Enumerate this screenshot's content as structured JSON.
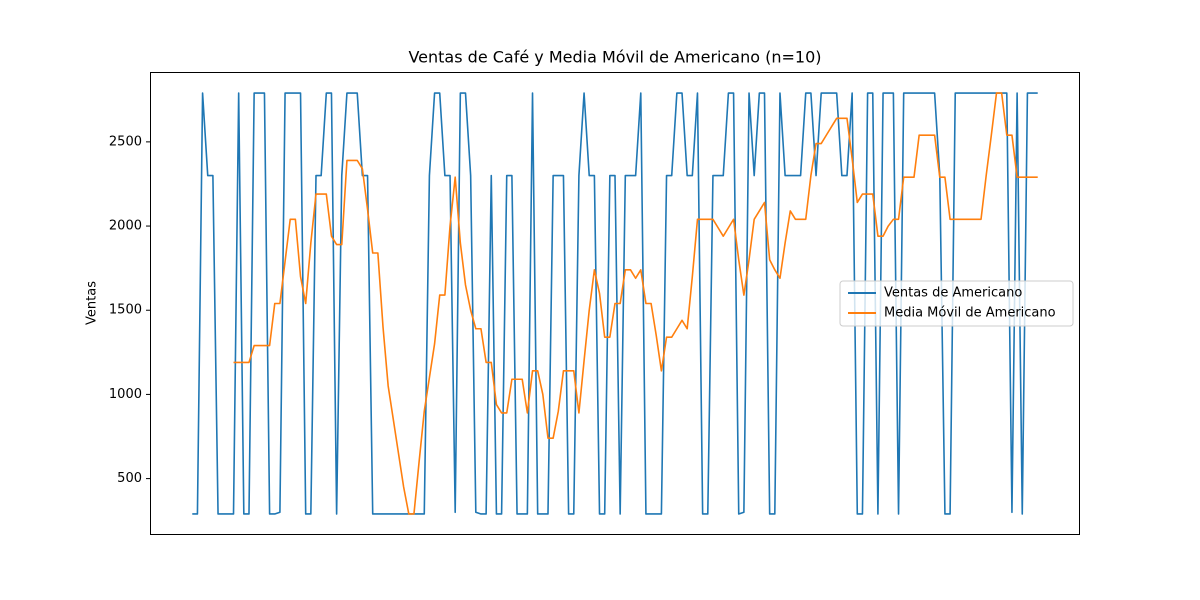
{
  "chart_data": {
    "type": "line",
    "title": "Ventas de Café y Media Móvil de Americano (n=10)",
    "y_label": "Ventas",
    "ylim": [
      165,
      2915
    ],
    "yticks": [
      500,
      1000,
      1500,
      2000,
      2500
    ],
    "legend": "center right",
    "series": [
      {
        "name": "Ventas de Americano",
        "color": "#1f77b4",
        "values": [
          290,
          290,
          2790,
          2300,
          2300,
          290,
          290,
          290,
          290,
          2790,
          290,
          290,
          2790,
          2790,
          2790,
          290,
          290,
          300,
          2790,
          2790,
          2790,
          2790,
          290,
          290,
          2300,
          2300,
          2790,
          2790,
          290,
          2300,
          2790,
          2790,
          2790,
          2300,
          2300,
          290,
          290,
          290,
          290,
          290,
          290,
          290,
          290,
          290,
          290,
          290,
          2300,
          2790,
          2790,
          2300,
          2300,
          300,
          2790,
          2790,
          2300,
          300,
          290,
          290,
          2300,
          290,
          290,
          2300,
          2300,
          290,
          290,
          290,
          2790,
          290,
          290,
          290,
          2300,
          2300,
          2300,
          290,
          290,
          2300,
          2790,
          2300,
          2300,
          290,
          290,
          2300,
          2300,
          290,
          2300,
          2300,
          2300,
          2790,
          290,
          290,
          290,
          290,
          2300,
          2300,
          2790,
          2790,
          2300,
          2300,
          2790,
          290,
          290,
          2300,
          2300,
          2300,
          2790,
          2790,
          290,
          300,
          2790,
          2300,
          2790,
          2790,
          290,
          290,
          2790,
          2300,
          2300,
          2300,
          2300,
          2790,
          2790,
          2300,
          2790,
          2790,
          2790,
          2790,
          2300,
          2300,
          2790,
          290,
          290,
          2790,
          2790,
          290,
          2790,
          2790,
          2790,
          290,
          2790,
          2790,
          2790,
          2790,
          2790,
          2790,
          2790,
          2300,
          290,
          290,
          2790,
          2790,
          2790,
          2790,
          2790,
          2790,
          2790,
          2790,
          2790,
          2790,
          2790,
          300,
          2790,
          290,
          2790,
          2790,
          2790
        ]
      },
      {
        "name": "Media Móvil de Americano",
        "color": "#ff7f0e",
        "values": [
          null,
          null,
          null,
          null,
          null,
          null,
          null,
          null,
          1190,
          1190,
          1190,
          1190,
          1290,
          1290,
          1290,
          1290,
          1540,
          1540,
          1790,
          2040,
          2040,
          1700,
          1540,
          1900,
          2190,
          2190,
          2190,
          1940,
          1890,
          1890,
          2390,
          2390,
          2390,
          2340,
          2100,
          1840,
          1840,
          1400,
          1050,
          850,
          650,
          450,
          290,
          290,
          600,
          900,
          1100,
          1300,
          1590,
          1590,
          2000,
          2290,
          1900,
          1650,
          1500,
          1390,
          1390,
          1190,
          1190,
          940,
          890,
          890,
          1090,
          1090,
          1090,
          890,
          1140,
          1140,
          1000,
          740,
          740,
          900,
          1140,
          1140,
          1140,
          890,
          1200,
          1500,
          1740,
          1600,
          1340,
          1340,
          1540,
          1540,
          1740,
          1740,
          1690,
          1740,
          1540,
          1540,
          1350,
          1140,
          1340,
          1340,
          1390,
          1440,
          1390,
          1700,
          2040,
          2040,
          2040,
          2040,
          1990,
          1940,
          1990,
          2040,
          1800,
          1590,
          1800,
          2040,
          2090,
          2140,
          1800,
          1740,
          1690,
          1900,
          2090,
          2040,
          2040,
          2040,
          2300,
          2490,
          2490,
          2540,
          2590,
          2640,
          2640,
          2640,
          2400,
          2140,
          2190,
          2190,
          2190,
          1940,
          1940,
          2000,
          2040,
          2040,
          2290,
          2290,
          2290,
          2540,
          2540,
          2540,
          2540,
          2290,
          2290,
          2040,
          2040,
          2040,
          2040,
          2040,
          2040,
          2040,
          2300,
          2540,
          2790,
          2790,
          2540,
          2540,
          2290,
          2290,
          2290,
          2290,
          2290
        ]
      }
    ]
  }
}
